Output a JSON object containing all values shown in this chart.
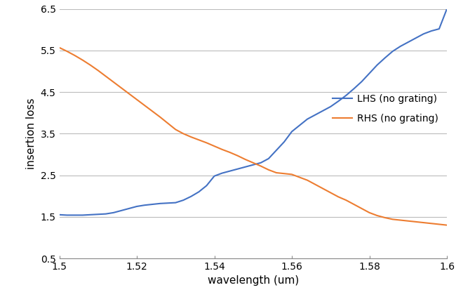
{
  "title": "",
  "xlabel": "wavelength (um)",
  "ylabel": "insertion loss",
  "xlim": [
    1.5,
    1.6
  ],
  "ylim": [
    0.5,
    6.5
  ],
  "xticks": [
    1.5,
    1.52,
    1.54,
    1.56,
    1.58,
    1.6
  ],
  "xtick_labels": [
    "1.5",
    "1.52",
    "1.54",
    "1.56",
    "1.58",
    "1.6"
  ],
  "yticks": [
    0.5,
    1.5,
    2.5,
    3.5,
    4.5,
    5.5,
    6.5
  ],
  "ytick_labels": [
    "0.5",
    "1.5",
    "2.5",
    "3.5",
    "4.5",
    "5.5",
    "6.5"
  ],
  "lhs_color": "#4472C4",
  "rhs_color": "#ED7D31",
  "legend_lhs": "LHS (no grating)",
  "legend_rhs": "RHS (no grating)",
  "lhs_x": [
    1.5,
    1.502,
    1.504,
    1.506,
    1.508,
    1.51,
    1.512,
    1.514,
    1.516,
    1.518,
    1.52,
    1.522,
    1.524,
    1.526,
    1.528,
    1.53,
    1.532,
    1.534,
    1.536,
    1.538,
    1.54,
    1.542,
    1.544,
    1.546,
    1.548,
    1.55,
    1.552,
    1.554,
    1.556,
    1.558,
    1.56,
    1.562,
    1.564,
    1.566,
    1.568,
    1.57,
    1.572,
    1.574,
    1.576,
    1.578,
    1.58,
    1.582,
    1.584,
    1.586,
    1.588,
    1.59,
    1.592,
    1.594,
    1.596,
    1.598,
    1.6
  ],
  "lhs_y": [
    1.55,
    1.54,
    1.54,
    1.54,
    1.55,
    1.56,
    1.57,
    1.6,
    1.65,
    1.7,
    1.75,
    1.78,
    1.8,
    1.82,
    1.83,
    1.84,
    1.9,
    1.99,
    2.1,
    2.25,
    2.48,
    2.55,
    2.6,
    2.65,
    2.7,
    2.75,
    2.8,
    2.9,
    3.1,
    3.3,
    3.55,
    3.7,
    3.85,
    3.95,
    4.05,
    4.15,
    4.28,
    4.42,
    4.58,
    4.75,
    4.95,
    5.15,
    5.32,
    5.48,
    5.6,
    5.7,
    5.8,
    5.9,
    5.97,
    6.02,
    6.5
  ],
  "rhs_x": [
    1.5,
    1.502,
    1.504,
    1.506,
    1.508,
    1.51,
    1.512,
    1.514,
    1.516,
    1.518,
    1.52,
    1.522,
    1.524,
    1.526,
    1.528,
    1.53,
    1.532,
    1.534,
    1.536,
    1.538,
    1.54,
    1.542,
    1.544,
    1.546,
    1.548,
    1.55,
    1.552,
    1.554,
    1.556,
    1.558,
    1.56,
    1.562,
    1.564,
    1.566,
    1.568,
    1.57,
    1.572,
    1.574,
    1.576,
    1.578,
    1.58,
    1.582,
    1.584,
    1.586,
    1.588,
    1.59,
    1.592,
    1.594,
    1.596,
    1.598,
    1.6
  ],
  "rhs_y": [
    5.57,
    5.48,
    5.38,
    5.27,
    5.15,
    5.02,
    4.88,
    4.74,
    4.6,
    4.46,
    4.32,
    4.18,
    4.04,
    3.9,
    3.75,
    3.6,
    3.5,
    3.42,
    3.35,
    3.28,
    3.2,
    3.12,
    3.05,
    2.97,
    2.88,
    2.8,
    2.72,
    2.63,
    2.56,
    2.54,
    2.52,
    2.45,
    2.38,
    2.28,
    2.18,
    2.08,
    1.98,
    1.9,
    1.8,
    1.7,
    1.6,
    1.53,
    1.48,
    1.44,
    1.42,
    1.4,
    1.38,
    1.36,
    1.34,
    1.32,
    1.3
  ],
  "background_color": "#ffffff",
  "grid_color": "#bbbbbb",
  "line_width": 1.5,
  "figsize": [
    6.5,
    4.23
  ],
  "dpi": 100
}
